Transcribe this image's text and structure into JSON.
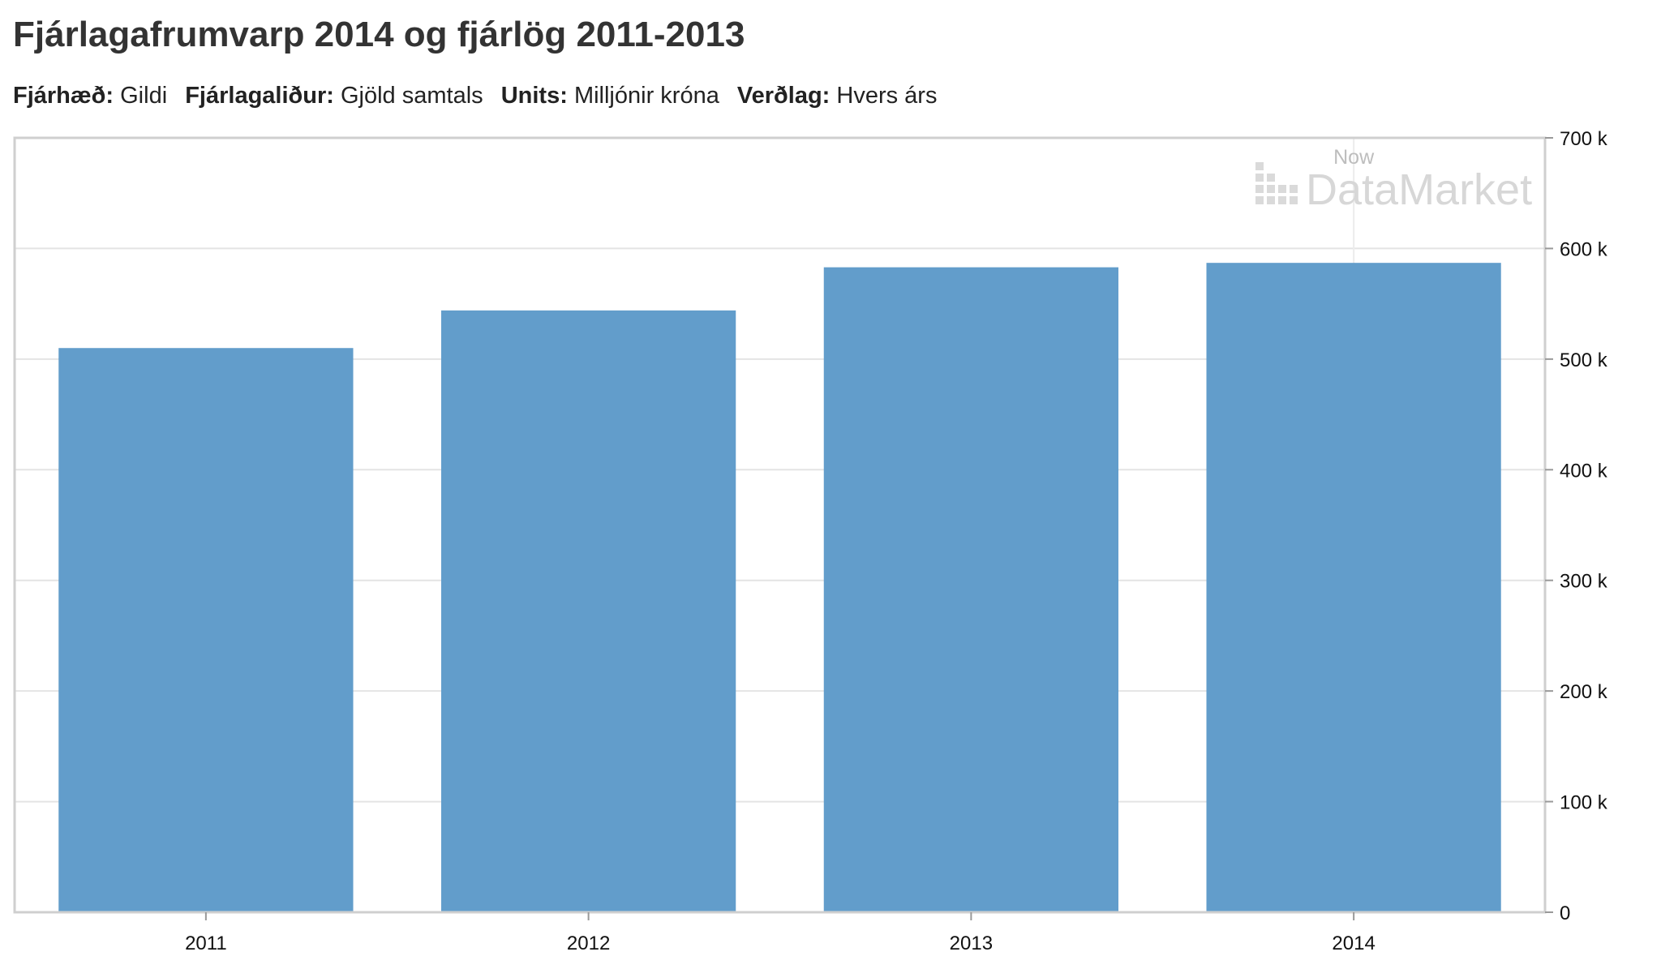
{
  "title": "Fjárlagafrumvarp 2014 og fjárlög 2011-2013",
  "filters": [
    {
      "key": "Fjárhæð:",
      "value": "Gildi"
    },
    {
      "key": "Fjárlagaliður:",
      "value": "Gjöld samtals"
    },
    {
      "key": "Units:",
      "value": "Milljónir króna"
    },
    {
      "key": "Verðlag:",
      "value": "Hvers árs"
    }
  ],
  "watermark": {
    "now": "Now",
    "brand": "DataMarket"
  },
  "colors": {
    "bar": "#629dcb",
    "grid": "#e4e4e4",
    "frame": "#cfcfcf"
  },
  "chart_data": {
    "type": "bar",
    "categories": [
      "2011",
      "2012",
      "2013",
      "2014"
    ],
    "values": [
      510000,
      544000,
      583000,
      587000
    ],
    "ylim": [
      0,
      700000
    ],
    "yticks": [
      0,
      100000,
      200000,
      300000,
      400000,
      500000,
      600000,
      700000
    ],
    "ytick_labels": [
      "0",
      "100 k",
      "200 k",
      "300 k",
      "400 k",
      "500 k",
      "600 k",
      "700 k"
    ],
    "y_axis_position": "right",
    "grid": true
  }
}
